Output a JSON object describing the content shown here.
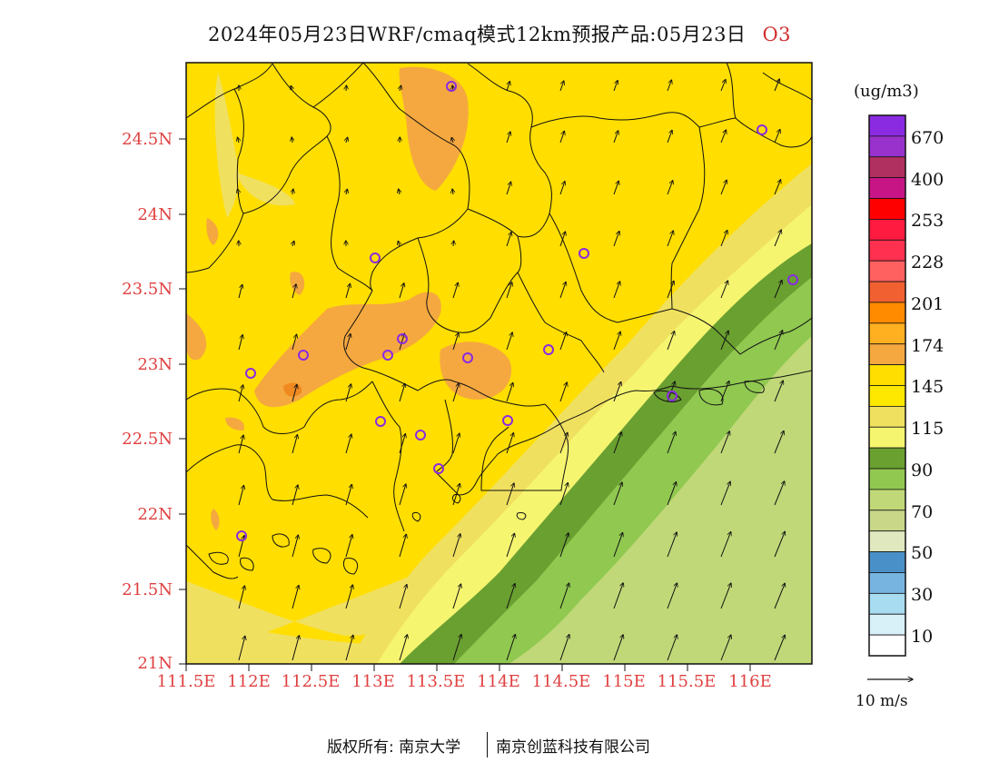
{
  "header": {
    "title": "2024年05月23日WRF/cmaq模式12km预报产品:05月23日",
    "species": "O3"
  },
  "axes": {
    "lat_labels": [
      "24.5N",
      "24N",
      "23.5N",
      "23N",
      "22.5N",
      "22N",
      "21.5N",
      "21N"
    ],
    "lon_labels": [
      "111.5E",
      "112E",
      "112.5E",
      "113E",
      "113.5E",
      "114E",
      "114.5E",
      "115E",
      "115.5E",
      "116E"
    ]
  },
  "legend": {
    "unit": "(ug/m3)",
    "labels": [
      "670",
      "400",
      "253",
      "228",
      "201",
      "174",
      "145",
      "115",
      "90",
      "70",
      "50",
      "30",
      "10"
    ],
    "colors": [
      "#8a2be2",
      "#9932cc",
      "#b03060",
      "#c71585",
      "#ff0000",
      "#ff1a40",
      "#ff3050",
      "#ff6060",
      "#f06030",
      "#ff8c00",
      "#ffb020",
      "#f5a840",
      "#ffde00",
      "#ffe800",
      "#f0e060",
      "#f5f570",
      "#6aa030",
      "#90c850",
      "#c0d878",
      "#c8d888",
      "#e0e8c0",
      "#4a90c8",
      "#78b4e0",
      "#a8dcf0",
      "#d8f0f8",
      "#ffffff"
    ]
  },
  "wind": {
    "reference_label": "10 m/s"
  },
  "footer": {
    "copyright": "版权所有: 南京大学",
    "company": "南京创蓝科技有限公司"
  },
  "map": {
    "colors": {
      "background": "#ffde00",
      "high_orange": "#f5a840",
      "peak_orange": "#f08a20",
      "light_yellow": "#f0e060",
      "pale_yellow": "#f5f570",
      "dark_green": "#6aa030",
      "mid_green": "#90c850",
      "light_green": "#c0d878",
      "station": "#8a2be2"
    }
  }
}
